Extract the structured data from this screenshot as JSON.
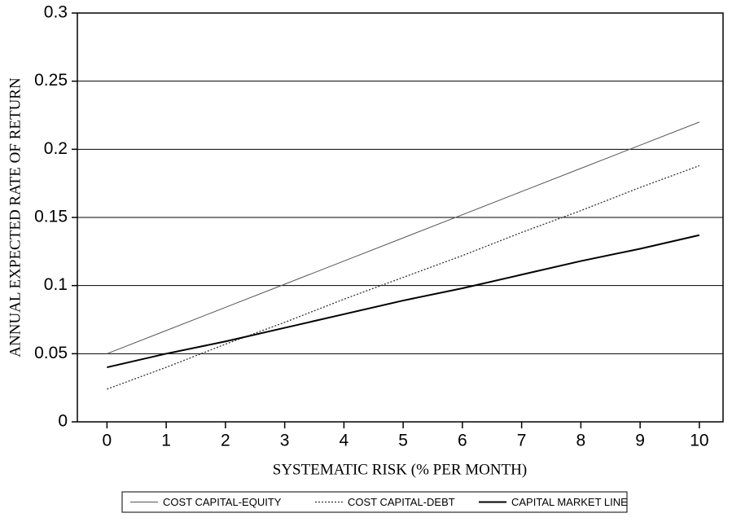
{
  "chart_data": {
    "type": "line",
    "xlabel": "SYSTEMATIC RISK (% PER MONTH)",
    "ylabel": "ANNUAL EXPECTED RATE OF RETURN",
    "x": [
      0,
      1,
      2,
      3,
      4,
      5,
      6,
      7,
      8,
      9,
      10
    ],
    "series": [
      {
        "name": "COST CAPITAL-EQUITY",
        "color": "#555555",
        "line_style": "solid",
        "line_width": 1,
        "values": [
          0.05,
          0.067,
          0.084,
          0.101,
          0.118,
          0.135,
          0.152,
          0.169,
          0.186,
          0.203,
          0.22
        ]
      },
      {
        "name": "COST CAPITAL-DEBT",
        "color": "#333333",
        "line_style": "dotted",
        "line_width": 1.3,
        "values": [
          0.024,
          0.04,
          0.057,
          0.073,
          0.09,
          0.106,
          0.122,
          0.139,
          0.155,
          0.172,
          0.188
        ]
      },
      {
        "name": "CAPITAL MARKET LINE",
        "color": "#000000",
        "line_style": "solid",
        "line_width": 2,
        "values": [
          0.04,
          0.05,
          0.059,
          0.069,
          0.079,
          0.089,
          0.098,
          0.108,
          0.118,
          0.127,
          0.137
        ]
      }
    ],
    "xlim": [
      -0.5,
      10.4
    ],
    "xticks": [
      0,
      1,
      2,
      3,
      4,
      5,
      6,
      7,
      8,
      9,
      10
    ],
    "ylim": [
      0,
      0.3
    ],
    "yticks": [
      0,
      0.05,
      0.1,
      0.15,
      0.2,
      0.25,
      0.3
    ],
    "grid": true,
    "legend": "bottom"
  }
}
